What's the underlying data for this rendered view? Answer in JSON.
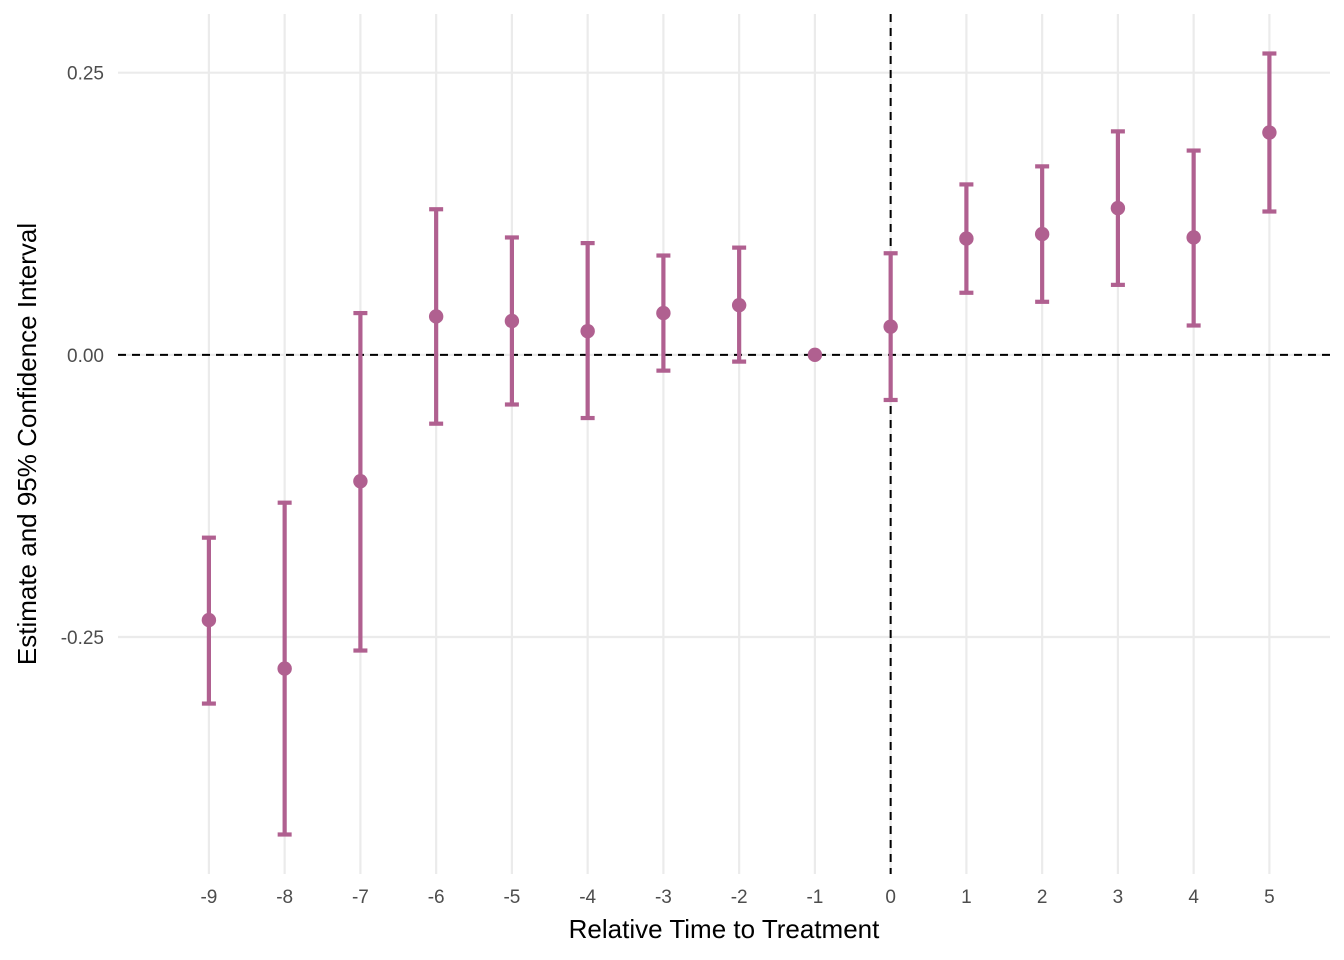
{
  "chart_data": {
    "type": "scatter",
    "subtype": "coefficient plot with error bars",
    "title": "",
    "xlabel": "Relative Time to Treatment",
    "ylabel": "Estimate and 95% Confidence Interval",
    "x": [
      -9,
      -8,
      -7,
      -6,
      -5,
      -4,
      -3,
      -2,
      -1,
      0,
      1,
      2,
      3,
      4,
      5
    ],
    "x_tick_labels": [
      "-9",
      "-8",
      "-7",
      "-6",
      "-5",
      "-4",
      "-3",
      "-2",
      "-1",
      "0",
      "1",
      "2",
      "3",
      "4",
      "5"
    ],
    "y_ticks": [
      -0.25,
      0.0,
      0.25
    ],
    "y_tick_labels": [
      "-0.25",
      "0.00",
      "0.25"
    ],
    "xlim": [
      -10.2,
      5.8
    ],
    "ylim": [
      -0.46,
      0.302
    ],
    "series": [
      {
        "estimate": [
          -0.235,
          -0.278,
          -0.112,
          0.034,
          0.03,
          0.021,
          0.037,
          0.044,
          0.0,
          0.025,
          0.103,
          0.107,
          0.13,
          0.104,
          0.197
        ],
        "ci_low": [
          -0.309,
          -0.425,
          -0.262,
          -0.061,
          -0.044,
          -0.056,
          -0.014,
          -0.006,
          0.0,
          -0.04,
          0.055,
          0.047,
          0.062,
          0.026,
          0.127
        ],
        "ci_high": [
          -0.162,
          -0.131,
          0.037,
          0.129,
          0.104,
          0.099,
          0.088,
          0.095,
          0.0,
          0.09,
          0.151,
          0.167,
          0.198,
          0.181,
          0.267
        ]
      }
    ],
    "reference_lines": {
      "horizontal_y": 0.0,
      "vertical_x": 0
    },
    "grid": true,
    "legend": "none",
    "colors": {
      "series": "#b06090",
      "reference": "#000000",
      "grid": "#ebebeb"
    }
  }
}
